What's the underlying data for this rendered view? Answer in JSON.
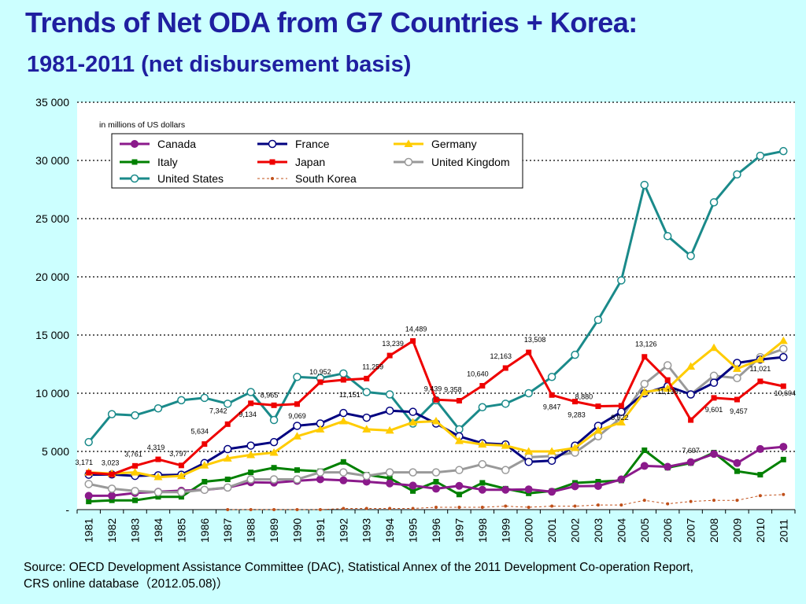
{
  "title": "Trends of Net ODA from G7 Countries + Korea:",
  "subtitle": "1981-2011 (net disbursement basis)",
  "source_line1": "Source: OECD Development Assistance Committee (DAC), Statistical Annex of the 2011 Development Co-operation Report,",
  "source_line2": "CRS online database（2012.05.08)）",
  "chart_data": {
    "type": "line",
    "unit_note": "in millions of US dollars",
    "ylim": [
      0,
      35000
    ],
    "yticks": [
      0,
      5000,
      10000,
      15000,
      20000,
      25000,
      30000,
      35000
    ],
    "ytick_labels": [
      "-",
      "5 000",
      "10 000",
      "15 000",
      "20 000",
      "25 000",
      "30 000",
      "35 000"
    ],
    "grid": "dotted horizontal",
    "legend_position": "top-left",
    "categories": [
      "1981",
      "1982",
      "1983",
      "1984",
      "1985",
      "1986",
      "1987",
      "1988",
      "1989",
      "1990",
      "1991",
      "1992",
      "1993",
      "1994",
      "1995",
      "1996",
      "1997",
      "1998",
      "1999",
      "2000",
      "2001",
      "2002",
      "2003",
      "2004",
      "2005",
      "2006",
      "2007",
      "2008",
      "2009",
      "2010",
      "2011"
    ],
    "series": [
      {
        "name": "Canada",
        "color": "#8b1a8b",
        "marker": "circle-filled",
        "style": "solid",
        "values": [
          1190,
          1197,
          1429,
          1535,
          1631,
          1695,
          1885,
          2347,
          2320,
          2470,
          2604,
          2515,
          2400,
          2250,
          2067,
          1795,
          2045,
          1707,
          1706,
          1744,
          1533,
          2004,
          2031,
          2599,
          3756,
          3683,
          4080,
          4785,
          4000,
          5209,
          5400
        ]
      },
      {
        "name": "France",
        "color": "#000080",
        "marker": "circle-open",
        "style": "solid",
        "values": [
          3000,
          3020,
          2900,
          2950,
          3000,
          4000,
          5200,
          5500,
          5800,
          7200,
          7400,
          8300,
          7900,
          8500,
          8400,
          7400,
          6300,
          5700,
          5600,
          4100,
          4200,
          5500,
          7200,
          8400,
          10000,
          10600,
          9900,
          10900,
          12600,
          12900,
          13100
        ]
      },
      {
        "name": "Germany",
        "color": "#ffcc00",
        "marker": "triangle-filled",
        "style": "solid",
        "values": [
          3200,
          3100,
          3200,
          2800,
          2900,
          3800,
          4400,
          4700,
          4900,
          6300,
          6900,
          7600,
          6900,
          6800,
          7500,
          7600,
          5900,
          5600,
          5500,
          5000,
          5000,
          5300,
          6800,
          7500,
          10100,
          10400,
          12300,
          13900,
          12100,
          12900,
          14500
        ]
      },
      {
        "name": "Italy",
        "color": "#008000",
        "marker": "square-filled",
        "style": "solid",
        "values": [
          700,
          800,
          800,
          1100,
          1100,
          2400,
          2600,
          3200,
          3600,
          3400,
          3300,
          4100,
          3000,
          2700,
          1600,
          2400,
          1300,
          2300,
          1800,
          1400,
          1600,
          2300,
          2400,
          2500,
          5100,
          3600,
          4000,
          4900,
          3300,
          3000,
          4300
        ]
      },
      {
        "name": "Japan",
        "color": "#ee0000",
        "marker": "square-filled",
        "style": "solid",
        "values": [
          3171,
          3023,
          3761,
          4319,
          3797,
          5634,
          7342,
          9134,
          8965,
          9069,
          10952,
          11151,
          11259,
          13239,
          14489,
          9439,
          9358,
          10640,
          12163,
          13508,
          9847,
          9283,
          8880,
          8922,
          13126,
          11136,
          7697,
          9601,
          9457,
          11021,
          10604
        ]
      },
      {
        "name": "United Kingdom",
        "color": "#999999",
        "marker": "circle-open",
        "style": "solid",
        "values": [
          2200,
          1800,
          1600,
          1500,
          1500,
          1700,
          1900,
          2600,
          2600,
          2600,
          3200,
          3200,
          2900,
          3200,
          3200,
          3200,
          3400,
          3900,
          3400,
          4500,
          4600,
          4900,
          6300,
          7900,
          10800,
          12400,
          9900,
          11500,
          11300,
          13100,
          13800
        ]
      },
      {
        "name": "United States",
        "color": "#1a8a8a",
        "marker": "circle-open",
        "style": "solid",
        "values": [
          5800,
          8200,
          8100,
          8700,
          9400,
          9600,
          9100,
          10100,
          7700,
          11400,
          11300,
          11700,
          10100,
          9900,
          7400,
          9400,
          6900,
          8800,
          9100,
          10000,
          11400,
          13300,
          16300,
          19700,
          27900,
          23500,
          21800,
          26400,
          28800,
          30400,
          30800
        ]
      },
      {
        "name": "South Korea",
        "color": "#c0501a",
        "marker": "dot-small",
        "style": "dashed",
        "values": [
          null,
          null,
          null,
          null,
          null,
          null,
          0,
          0,
          0,
          0,
          0,
          100,
          100,
          100,
          100,
          200,
          200,
          200,
          300,
          200,
          300,
          300,
          400,
          400,
          800,
          500,
          700,
          800,
          800,
          1200,
          1300
        ]
      }
    ],
    "data_labels_series": "Japan",
    "data_labels": [
      "3,171",
      "3,023",
      "3,761",
      "4,319",
      "3,797",
      "5,634",
      "7,342",
      "9,134",
      "8,965",
      "9,069",
      "10,952",
      "11,151",
      "11,259",
      "13,239",
      "14,489",
      "9,439",
      "9,358",
      "10,640",
      "12,163",
      "13,508",
      "9,847",
      "9,283",
      "8,880",
      "8,922",
      "13,126",
      "11,136",
      "7,697",
      "9,601",
      "9,457",
      "11,021",
      "10,604"
    ]
  }
}
